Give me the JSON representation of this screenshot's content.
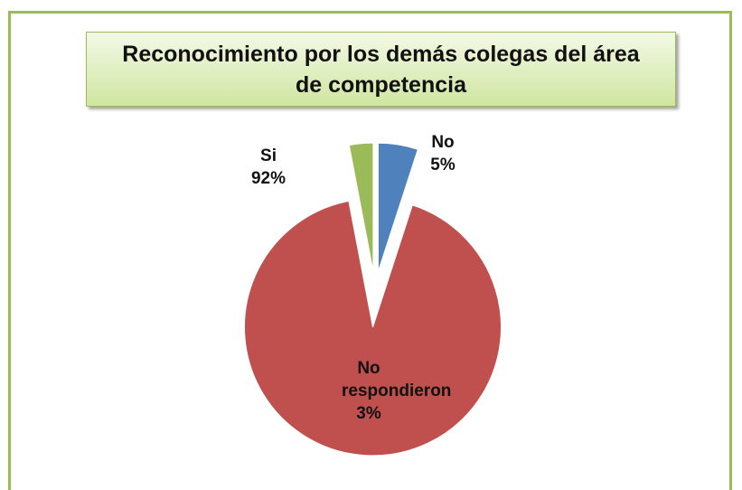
{
  "chart_data": {
    "type": "pie",
    "title": "Reconocimiento por los demás colegas del  área\nde competencia",
    "categories": [
      "No",
      "Si",
      "No respondieron"
    ],
    "values": [
      5,
      92,
      3
    ],
    "value_labels": [
      "5%",
      "92%",
      "3%"
    ],
    "colors": [
      "#4f81bd",
      "#c0504d",
      "#9bbb59"
    ]
  }
}
